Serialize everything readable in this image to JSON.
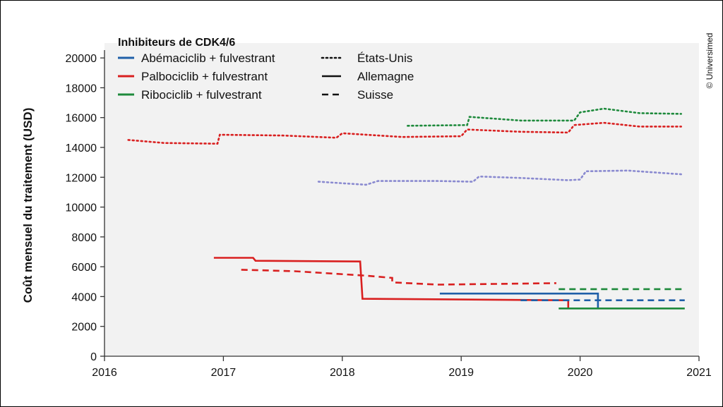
{
  "chart_data": {
    "type": "line",
    "xlabel": "",
    "ylabel": "Coût mensuel du traitement (USD)",
    "xlim": [
      2016,
      2021
    ],
    "ylim": [
      0,
      21000
    ],
    "x_ticks": [
      "2016",
      "2017",
      "2018",
      "2019",
      "2020",
      "2021"
    ],
    "y_ticks": [
      "0",
      "2000",
      "4000",
      "6000",
      "8000",
      "10000",
      "12000",
      "14000",
      "16000",
      "18000",
      "20000"
    ],
    "grid": false,
    "legend": {
      "title": "Inhibiteurs de CDK4/6",
      "drugs": [
        {
          "name": "Abémaciclib + fulvestrant",
          "color": "#1f5fa8"
        },
        {
          "name": "Palbociclib + fulvestrant",
          "color": "#d92020"
        },
        {
          "name": "Ribociclib + fulvestrant",
          "color": "#1e8a3c"
        }
      ],
      "countries": [
        {
          "name": "États-Unis",
          "style": "dotted"
        },
        {
          "name": "Allemagne",
          "style": "solid"
        },
        {
          "name": "Suisse",
          "style": "dashed"
        }
      ]
    },
    "credit": "© Universimed",
    "series": [
      {
        "key": "palbo-us",
        "drug": "Palbociclib + fulvestrant",
        "country": "États-Unis",
        "color": "#d92020",
        "style": "dotted",
        "points": [
          [
            2016.2,
            14500
          ],
          [
            2016.5,
            14300
          ],
          [
            2016.95,
            14250
          ],
          [
            2016.97,
            14850
          ],
          [
            2017.5,
            14800
          ],
          [
            2017.95,
            14650
          ],
          [
            2018.0,
            14950
          ],
          [
            2018.5,
            14700
          ],
          [
            2019.0,
            14750
          ],
          [
            2019.05,
            15200
          ],
          [
            2019.5,
            15050
          ],
          [
            2019.9,
            15000
          ],
          [
            2019.95,
            15500
          ],
          [
            2020.2,
            15650
          ],
          [
            2020.5,
            15400
          ],
          [
            2020.85,
            15400
          ]
        ]
      },
      {
        "key": "ribo-us",
        "drug": "Ribociclib + fulvestrant",
        "country": "États-Unis",
        "color": "#1e8a3c",
        "style": "dotted",
        "points": [
          [
            2018.55,
            15450
          ],
          [
            2019.05,
            15500
          ],
          [
            2019.07,
            16050
          ],
          [
            2019.5,
            15800
          ],
          [
            2019.95,
            15800
          ],
          [
            2020.0,
            16350
          ],
          [
            2020.2,
            16600
          ],
          [
            2020.5,
            16300
          ],
          [
            2020.85,
            16250
          ]
        ]
      },
      {
        "key": "abema-us",
        "drug": "Abémaciclib + fulvestrant",
        "country": "États-Unis",
        "color": "#8a8ad0",
        "style": "dotted",
        "points": [
          [
            2017.8,
            11700
          ],
          [
            2018.2,
            11500
          ],
          [
            2018.3,
            11750
          ],
          [
            2018.8,
            11750
          ],
          [
            2019.1,
            11700
          ],
          [
            2019.15,
            12050
          ],
          [
            2019.5,
            11950
          ],
          [
            2019.9,
            11800
          ],
          [
            2020.0,
            11850
          ],
          [
            2020.05,
            12400
          ],
          [
            2020.4,
            12450
          ],
          [
            2020.85,
            12200
          ]
        ]
      },
      {
        "key": "palbo-de",
        "drug": "Palbociclib + fulvestrant",
        "country": "Allemagne",
        "color": "#d92020",
        "style": "solid",
        "points": [
          [
            2016.92,
            6600
          ],
          [
            2017.25,
            6600
          ],
          [
            2017.27,
            6400
          ],
          [
            2018.15,
            6350
          ],
          [
            2018.17,
            3850
          ],
          [
            2019.9,
            3750
          ],
          [
            2019.9,
            3200
          ]
        ]
      },
      {
        "key": "palbo-ch",
        "drug": "Palbociclib + fulvestrant",
        "country": "Suisse",
        "color": "#d92020",
        "style": "dashed",
        "points": [
          [
            2017.15,
            5800
          ],
          [
            2017.6,
            5700
          ],
          [
            2018.2,
            5400
          ],
          [
            2018.42,
            5250
          ],
          [
            2018.42,
            4950
          ],
          [
            2018.8,
            4800
          ],
          [
            2019.3,
            4850
          ],
          [
            2019.8,
            4900
          ]
        ]
      },
      {
        "key": "abema-de",
        "drug": "Abémaciclib + fulvestrant",
        "country": "Allemagne",
        "color": "#1f5fa8",
        "style": "solid",
        "points": [
          [
            2018.82,
            4200
          ],
          [
            2020.15,
            4200
          ],
          [
            2020.15,
            3200
          ]
        ]
      },
      {
        "key": "abema-ch",
        "drug": "Abémaciclib + fulvestrant",
        "country": "Suisse",
        "color": "#1f5fa8",
        "style": "dashed",
        "points": [
          [
            2019.5,
            3750
          ],
          [
            2020.88,
            3750
          ]
        ]
      },
      {
        "key": "ribo-de",
        "drug": "Ribociclib + fulvestrant",
        "country": "Allemagne",
        "color": "#1e8a3c",
        "style": "solid",
        "points": [
          [
            2019.82,
            3200
          ],
          [
            2020.88,
            3200
          ]
        ]
      },
      {
        "key": "ribo-ch",
        "drug": "Ribociclib + fulvestrant",
        "country": "Suisse",
        "color": "#1e8a3c",
        "style": "dashed",
        "points": [
          [
            2019.82,
            4500
          ],
          [
            2020.88,
            4500
          ]
        ]
      }
    ]
  }
}
